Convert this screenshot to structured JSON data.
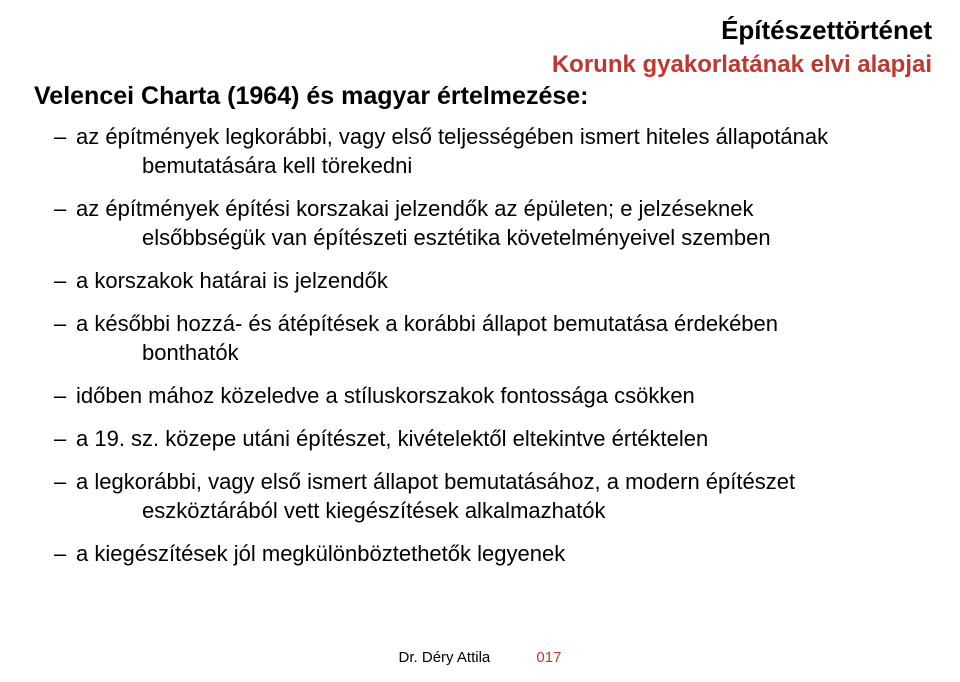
{
  "header": {
    "title": "Építészettörténet",
    "subtitle": "Korunk gyakorlatának elvi alapjai",
    "title_color": "#000000",
    "subtitle_color": "#c0372f"
  },
  "section_title": "Velencei Charta (1964) és magyar értelmezése:",
  "bullets": [
    {
      "line1": "az építmények legkorábbi, vagy első teljességében ismert hiteles állapotának",
      "line2": "bemutatására kell törekedni"
    },
    {
      "line1": "az építmények építési korszakai jelzendők az épületen; e jelzéseknek",
      "line2": "elsőbbségük van építészeti esztétika követelményeivel szemben"
    },
    {
      "line1": "a korszakok határai is jelzendők",
      "line2": ""
    },
    {
      "line1": "a későbbi hozzá- és átépítések a korábbi állapot bemutatása érdekében",
      "line2": "bonthatók"
    },
    {
      "line1": "időben mához közeledve a stíluskorszakok fontossága csökken",
      "line2": ""
    },
    {
      "line1": "a 19. sz. közepe utáni építészet, kivételektől eltekintve értéktelen",
      "line2": ""
    },
    {
      "line1": "a legkorábbi, vagy első ismert állapot bemutatásához, a modern építészet",
      "line2": "eszköztárából vett kiegészítések alkalmazhatók"
    },
    {
      "line1": "a kiegészítések jól megkülönböztethetők legyenek",
      "line2": ""
    }
  ],
  "footer": {
    "author": "Dr. Déry Attila",
    "page": "017",
    "page_color": "#c0372f"
  },
  "style": {
    "body_font_size": 22,
    "header_title_size": 26,
    "header_sub_size": 24,
    "section_title_size": 25,
    "footer_size": 15,
    "background": "#ffffff",
    "text_color": "#000000"
  }
}
